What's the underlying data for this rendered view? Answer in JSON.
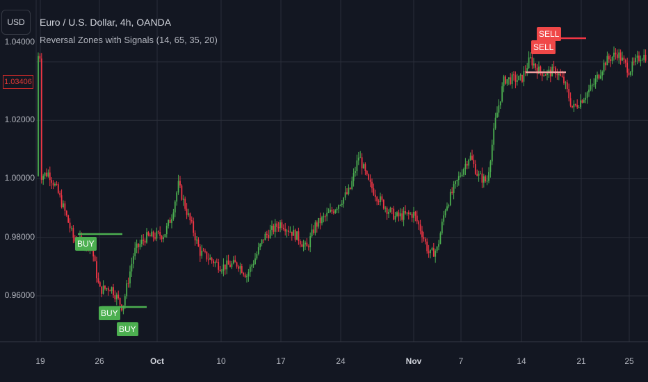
{
  "currency_button": "USD",
  "symbol_title": "Euro / U.S. Dollar, 4h, OANDA",
  "indicator_title": "Reversal Zones with Signals (14, 65, 35, 20)",
  "current_price": "1.03406",
  "price_axis": [
    "1.04000",
    "1.02000",
    "1.00000",
    "0.98000",
    "0.96000"
  ],
  "time_axis": [
    {
      "label": "19",
      "bold": false
    },
    {
      "label": "26",
      "bold": false
    },
    {
      "label": "Oct",
      "bold": true
    },
    {
      "label": "10",
      "bold": false
    },
    {
      "label": "17",
      "bold": false
    },
    {
      "label": "24",
      "bold": false
    },
    {
      "label": "Nov",
      "bold": true
    },
    {
      "label": "7",
      "bold": false
    },
    {
      "label": "14",
      "bold": false
    },
    {
      "label": "21",
      "bold": false
    },
    {
      "label": "25",
      "bold": false
    }
  ],
  "signals": [
    {
      "type": "BUY",
      "label": "BUY"
    },
    {
      "type": "BUY",
      "label": "BUY"
    },
    {
      "type": "BUY",
      "label": "BUY"
    },
    {
      "type": "SELL",
      "label": "SELL"
    },
    {
      "type": "SELL",
      "label": "SELL"
    }
  ],
  "colors": {
    "bull": "#4caf50",
    "bear": "#f23645",
    "background": "#131722",
    "grid": "#2a2e39",
    "buy_zone": "#4caf50",
    "sell_zone": "#f23645"
  },
  "chart_data": {
    "type": "candlestick",
    "symbol": "EURUSD",
    "interval": "4h",
    "ylim": [
      0.948,
      1.06
    ],
    "close_path": [
      {
        "date": "Sep 19",
        "close": 1.001
      },
      {
        "date": "Sep 20",
        "close": 1.002
      },
      {
        "date": "Sep 21",
        "close": 0.996
      },
      {
        "date": "Sep 22",
        "close": 0.988
      },
      {
        "date": "Sep 23",
        "close": 0.979
      },
      {
        "date": "Sep 25",
        "close": 0.978
      },
      {
        "date": "Sep 26",
        "close": 0.962
      },
      {
        "date": "Sep 27",
        "close": 0.963
      },
      {
        "date": "Sep 28",
        "close": 0.956
      },
      {
        "date": "Sep 29",
        "close": 0.975
      },
      {
        "date": "Sep 30",
        "close": 0.98
      },
      {
        "date": "Oct 2",
        "close": 0.981
      },
      {
        "date": "Oct 3",
        "close": 0.987
      },
      {
        "date": "Oct 4",
        "close": 0.998
      },
      {
        "date": "Oct 5",
        "close": 0.99
      },
      {
        "date": "Oct 6",
        "close": 0.983
      },
      {
        "date": "Oct 7",
        "close": 0.975
      },
      {
        "date": "Oct 10",
        "close": 0.97
      },
      {
        "date": "Oct 12",
        "close": 0.971
      },
      {
        "date": "Oct 13",
        "close": 0.967
      },
      {
        "date": "Oct 14",
        "close": 0.973
      },
      {
        "date": "Oct 15",
        "close": 0.98
      },
      {
        "date": "Oct 17",
        "close": 0.985
      },
      {
        "date": "Oct 19",
        "close": 0.98
      },
      {
        "date": "Oct 20",
        "close": 0.976
      },
      {
        "date": "Oct 21",
        "close": 0.984
      },
      {
        "date": "Oct 23",
        "close": 0.989
      },
      {
        "date": "Oct 25",
        "close": 0.996
      },
      {
        "date": "Oct 26",
        "close": 1.008
      },
      {
        "date": "Oct 27",
        "close": 0.999
      },
      {
        "date": "Oct 28",
        "close": 0.994
      },
      {
        "date": "Oct 29",
        "close": 0.99
      },
      {
        "date": "Oct 30",
        "close": 0.987
      },
      {
        "date": "Nov 1",
        "close": 0.988
      },
      {
        "date": "Nov 2",
        "close": 0.982
      },
      {
        "date": "Nov 3",
        "close": 0.974
      },
      {
        "date": "Nov 4",
        "close": 0.976
      },
      {
        "date": "Nov 5",
        "close": 0.99
      },
      {
        "date": "Nov 7",
        "close": 1.002
      },
      {
        "date": "Nov 8",
        "close": 1.008
      },
      {
        "date": "Nov 9",
        "close": 1.001
      },
      {
        "date": "Nov 10",
        "close": 0.999
      },
      {
        "date": "Nov 11",
        "close": 1.02
      },
      {
        "date": "Nov 12",
        "close": 1.034
      },
      {
        "date": "Nov 14",
        "close": 1.034
      },
      {
        "date": "Nov 15",
        "close": 1.041
      },
      {
        "date": "Nov 16",
        "close": 1.037
      },
      {
        "date": "Nov 17",
        "close": 1.036
      },
      {
        "date": "Nov 18",
        "close": 1.037
      },
      {
        "date": "Nov 19",
        "close": 1.033
      },
      {
        "date": "Nov 20",
        "close": 1.024
      },
      {
        "date": "Nov 21",
        "close": 1.027
      },
      {
        "date": "Nov 22",
        "close": 1.032
      },
      {
        "date": "Nov 23",
        "close": 1.04
      },
      {
        "date": "Nov 24",
        "close": 1.043
      },
      {
        "date": "Nov 25",
        "close": 1.037
      },
      {
        "date": "Nov 26",
        "close": 1.042
      }
    ]
  }
}
